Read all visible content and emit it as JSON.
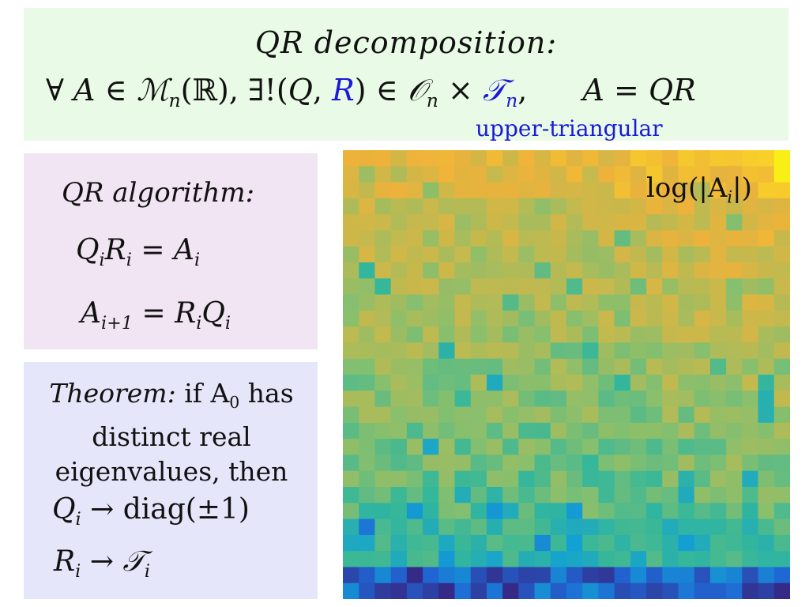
{
  "top": {
    "title": "QR decomposition:",
    "forall": "∀",
    "A": "A",
    "in1": "∈",
    "M": "ℳ",
    "n1": "n",
    "field": "(ℝ),",
    "exists": "∃!(",
    "Q": "Q",
    "comma": ", ",
    "R": "R",
    "close_in": ") ∈ ",
    "O": "𝒪",
    "n2": "n",
    "times": " × ",
    "T": "𝒯",
    "n3": "n",
    "trail": ",",
    "eq": "A = QR",
    "note": "upper-triangular"
  },
  "algorithm": {
    "title": "QR algorithm:",
    "eq1": {
      "Q": "Q",
      "i1": "i",
      "R": "R",
      "i2": "i",
      "mid": " = A",
      "i3": "i"
    },
    "eq2": {
      "A": "A",
      "sub": "i+1",
      "mid": " = R",
      "i1": "i",
      "Q": "Q",
      "i2": "i"
    }
  },
  "theorem": {
    "label": "Theorem:",
    "text_a": " if A",
    "sub0": "0",
    "text_b": " has distinct real eigenvalues, then",
    "eq1": {
      "Q": "Q",
      "i": "i",
      "rest": " → diag(±1)"
    },
    "eq2": {
      "R": "R",
      "i1": "i",
      "arrow": " → ",
      "T": "𝒯",
      "i2": "i"
    }
  },
  "heatmap": {
    "label_pre": "log(|A",
    "label_sub": "i",
    "label_post": "|)",
    "rows": 28,
    "cols": 28,
    "colormap": [
      "#352a87",
      "#1f69d6",
      "#13a2d2",
      "#35b79a",
      "#86bf6e",
      "#c3b94e",
      "#eeb23a",
      "#f9d228",
      "#f9fb0e"
    ]
  }
}
